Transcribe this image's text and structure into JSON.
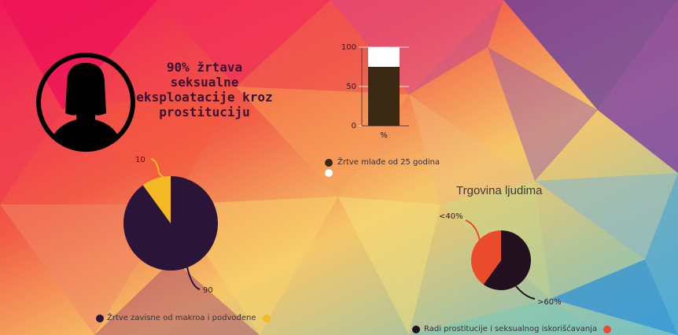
{
  "headline": "90% žrtava seksualne eksploatacije kroz prostituciju",
  "colors": {
    "dark_purple": "#2a1538",
    "dark_brown": "#3a2a14",
    "yellow": "#f5b923",
    "orange_red": "#ea4b2a",
    "white": "#ffffff",
    "icon_black": "#000000"
  },
  "icons": {
    "person": "woman-silhouette-icon"
  },
  "chart_data": [
    {
      "type": "bar",
      "categories": [
        "%"
      ],
      "series": [
        {
          "name": "Žrtve mlađe od 25 godina",
          "values": [
            75
          ]
        },
        {
          "name": "",
          "values": [
            25
          ]
        }
      ],
      "stacked": true,
      "ylim": [
        0,
        100
      ],
      "yticks": [
        0,
        50,
        100
      ],
      "xlabel": "",
      "ylabel": ""
    },
    {
      "type": "pie",
      "labels": [
        "90",
        "10"
      ],
      "values": [
        90,
        10
      ],
      "legend": [
        "Žrtve zavisne od makroa i podvođene",
        ""
      ],
      "colors": [
        "#2a1538",
        "#f5b923"
      ]
    },
    {
      "type": "pie",
      "title": "Trgovina ljudima",
      "labels": [
        ">60%",
        "<40%"
      ],
      "values": [
        60,
        40
      ],
      "legend": [
        "Radi prostitucije i seksualnog iskorišćavanja",
        ""
      ],
      "colors": [
        "#22101e",
        "#ea4b2a"
      ]
    }
  ]
}
